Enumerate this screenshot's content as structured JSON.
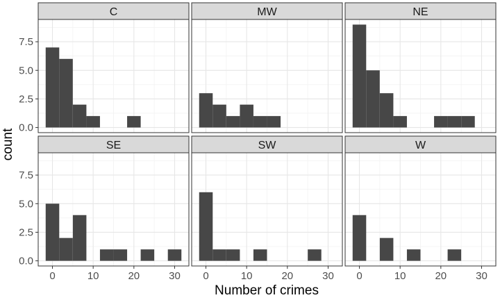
{
  "chart_data": {
    "type": "bar",
    "xlabel": "Number of crimes",
    "ylabel": "count",
    "xlim": [
      -3.5,
      33.5
    ],
    "ylim": [
      -0.45,
      9.45
    ],
    "xticks": [
      0,
      10,
      20,
      30
    ],
    "yticks": [
      0.0,
      2.5,
      5.0,
      7.5
    ],
    "ytick_labels": [
      "0.0",
      "2.5",
      "5.0",
      "7.5"
    ],
    "bin_width": 3.33,
    "facet_rows": 2,
    "facet_cols": 3,
    "grid": true,
    "bar_color": "#474747",
    "panel_border_color": "#333333",
    "strip_fill": "#d9d9d9",
    "panels": [
      {
        "label": "C",
        "bins": [
          {
            "x": 0,
            "count": 7
          },
          {
            "x": 3.33,
            "count": 6
          },
          {
            "x": 6.67,
            "count": 2
          },
          {
            "x": 10,
            "count": 1
          },
          {
            "x": 20,
            "count": 1
          }
        ]
      },
      {
        "label": "MW",
        "bins": [
          {
            "x": 0,
            "count": 3
          },
          {
            "x": 3.33,
            "count": 2
          },
          {
            "x": 6.67,
            "count": 1
          },
          {
            "x": 10,
            "count": 2
          },
          {
            "x": 13.33,
            "count": 1
          },
          {
            "x": 16.67,
            "count": 1
          }
        ]
      },
      {
        "label": "NE",
        "bins": [
          {
            "x": 0,
            "count": 9
          },
          {
            "x": 3.33,
            "count": 5
          },
          {
            "x": 6.67,
            "count": 3
          },
          {
            "x": 10,
            "count": 1
          },
          {
            "x": 20,
            "count": 1
          },
          {
            "x": 23.33,
            "count": 1
          },
          {
            "x": 26.67,
            "count": 1
          }
        ]
      },
      {
        "label": "SE",
        "bins": [
          {
            "x": 0,
            "count": 5
          },
          {
            "x": 3.33,
            "count": 2
          },
          {
            "x": 6.67,
            "count": 4
          },
          {
            "x": 13.33,
            "count": 1
          },
          {
            "x": 16.67,
            "count": 1
          },
          {
            "x": 23.33,
            "count": 1
          },
          {
            "x": 30,
            "count": 1
          }
        ]
      },
      {
        "label": "SW",
        "bins": [
          {
            "x": 0,
            "count": 6
          },
          {
            "x": 3.33,
            "count": 1
          },
          {
            "x": 6.67,
            "count": 1
          },
          {
            "x": 13.33,
            "count": 1
          },
          {
            "x": 26.67,
            "count": 1
          }
        ]
      },
      {
        "label": "W",
        "bins": [
          {
            "x": 0,
            "count": 4
          },
          {
            "x": 6.67,
            "count": 2
          },
          {
            "x": 13.33,
            "count": 1
          },
          {
            "x": 23.33,
            "count": 1
          }
        ]
      }
    ]
  }
}
